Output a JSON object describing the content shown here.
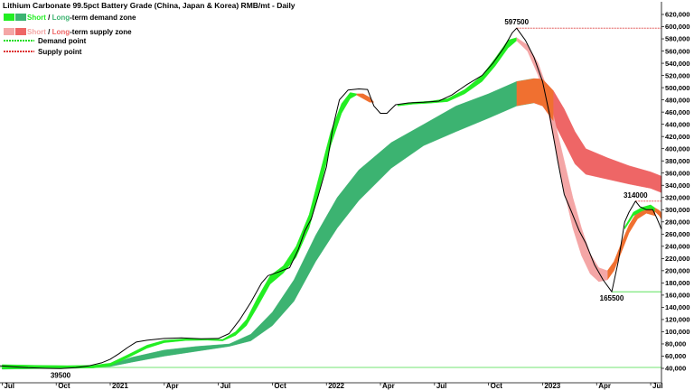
{
  "chart_data": {
    "type": "line",
    "title": "Lithium Carbonate 99.5pct Battery Grade (China, Japan & Korea) RMB/mt - Daily",
    "legend": [
      {
        "prefix": "Short",
        "sep": " / ",
        "accent": "Long",
        "suffix": "-term demand zone",
        "color_short": "#22ee22",
        "color_long": "#3cb371"
      },
      {
        "prefix": "Short",
        "sep": " / ",
        "accent": "Long",
        "suffix": "-term supply zone",
        "color_short": "#f4a6a6",
        "color_long": "#ee6666"
      },
      {
        "label": "Demand point",
        "color": "#22dd22",
        "dotted": true
      },
      {
        "label": "Supply point",
        "color": "#dd3333",
        "dotted": true
      }
    ],
    "legend_position": "top-left",
    "y_axis": {
      "position": "right",
      "min": 40000,
      "max": 620000,
      "step": 20000
    },
    "y_ticks": [
      "40,000",
      "60,000",
      "80,000",
      "100,000",
      "120,000",
      "140,000",
      "160,000",
      "180,000",
      "200,000",
      "220,000",
      "240,000",
      "260,000",
      "280,000",
      "300,000",
      "320,000",
      "340,000",
      "360,000",
      "380,000",
      "400,000",
      "420,000",
      "440,000",
      "460,000",
      "480,000",
      "500,000",
      "520,000",
      "540,000",
      "560,000",
      "580,000",
      "600,000",
      "620,000"
    ],
    "x_ticks": [
      {
        "label": "Jul",
        "t": 2020.5
      },
      {
        "label": "Oct",
        "t": 2020.75
      },
      {
        "label": "2021",
        "t": 2021.0
      },
      {
        "label": "Apr",
        "t": 2021.25
      },
      {
        "label": "Jul",
        "t": 2021.5
      },
      {
        "label": "Oct",
        "t": 2021.75
      },
      {
        "label": "2022",
        "t": 2022.0
      },
      {
        "label": "Apr",
        "t": 2022.25
      },
      {
        "label": "Jul",
        "t": 2022.5
      },
      {
        "label": "Oct",
        "t": 2022.75
      },
      {
        "label": "2023",
        "t": 2023.0
      },
      {
        "label": "Apr",
        "t": 2023.25
      },
      {
        "label": "Jul",
        "t": 2023.5
      }
    ],
    "x_range": [
      2020.49,
      2023.55
    ],
    "annotations": [
      {
        "text": "597500",
        "t": 2022.88,
        "y": 597500,
        "where": "above"
      },
      {
        "text": "39500",
        "t": 2020.77,
        "y": 39500,
        "where": "below"
      },
      {
        "text": "165500",
        "t": 2023.32,
        "y": 165500,
        "where": "below"
      },
      {
        "text": "314000",
        "t": 2023.43,
        "y": 314000,
        "where": "above"
      }
    ],
    "reference_lines": [
      {
        "kind": "supply",
        "y": 597500,
        "t_from": 2022.88,
        "t_to": 2023.55
      },
      {
        "kind": "supply",
        "y": 314000,
        "t_from": 2023.43,
        "t_to": 2023.55
      },
      {
        "kind": "demand",
        "y": 165500,
        "t_from": 2023.32,
        "t_to": 2023.55
      },
      {
        "kind": "demand",
        "y": 41500,
        "t_from": 2020.49,
        "t_to": 2023.55
      }
    ],
    "series": [
      {
        "key": "price",
        "color": "#000000",
        "points": [
          [
            2020.49,
            44000
          ],
          [
            2020.55,
            42500
          ],
          [
            2020.62,
            41000
          ],
          [
            2020.7,
            40000
          ],
          [
            2020.77,
            39500
          ],
          [
            2020.84,
            41000
          ],
          [
            2020.9,
            44000
          ],
          [
            2020.96,
            49000
          ],
          [
            2021.0,
            55000
          ],
          [
            2021.04,
            64000
          ],
          [
            2021.08,
            74000
          ],
          [
            2021.12,
            83000
          ],
          [
            2021.17,
            86000
          ],
          [
            2021.25,
            89000
          ],
          [
            2021.33,
            90000
          ],
          [
            2021.42,
            88500
          ],
          [
            2021.5,
            89000
          ],
          [
            2021.55,
            97000
          ],
          [
            2021.6,
            120000
          ],
          [
            2021.65,
            148000
          ],
          [
            2021.7,
            180000
          ],
          [
            2021.73,
            192000
          ],
          [
            2021.78,
            198000
          ],
          [
            2021.83,
            205000
          ],
          [
            2021.87,
            235000
          ],
          [
            2021.9,
            265000
          ],
          [
            2021.93,
            285000
          ],
          [
            2021.96,
            320000
          ],
          [
            2022.0,
            370000
          ],
          [
            2022.03,
            435000
          ],
          [
            2022.06,
            480000
          ],
          [
            2022.1,
            496000
          ],
          [
            2022.15,
            498000
          ],
          [
            2022.19,
            497000
          ],
          [
            2022.22,
            470000
          ],
          [
            2022.25,
            458000
          ],
          [
            2022.28,
            458000
          ],
          [
            2022.32,
            472000
          ],
          [
            2022.38,
            475000
          ],
          [
            2022.45,
            476000
          ],
          [
            2022.52,
            478000
          ],
          [
            2022.58,
            488000
          ],
          [
            2022.65,
            505000
          ],
          [
            2022.72,
            520000
          ],
          [
            2022.77,
            540000
          ],
          [
            2022.82,
            565000
          ],
          [
            2022.86,
            590000
          ],
          [
            2022.88,
            597500
          ],
          [
            2022.92,
            578000
          ],
          [
            2022.96,
            550000
          ],
          [
            2023.0,
            510000
          ],
          [
            2023.03,
            460000
          ],
          [
            2023.07,
            380000
          ],
          [
            2023.1,
            325000
          ],
          [
            2023.13,
            300000
          ],
          [
            2023.17,
            265000
          ],
          [
            2023.2,
            245000
          ],
          [
            2023.24,
            210000
          ],
          [
            2023.28,
            185000
          ],
          [
            2023.32,
            165500
          ],
          [
            2023.35,
            215000
          ],
          [
            2023.38,
            280000
          ],
          [
            2023.4,
            296000
          ],
          [
            2023.43,
            314000
          ],
          [
            2023.45,
            305000
          ],
          [
            2023.48,
            300000
          ],
          [
            2023.51,
            300000
          ],
          [
            2023.53,
            285000
          ],
          [
            2023.55,
            268000
          ]
        ]
      },
      {
        "key": "short_term_zone",
        "points": [
          [
            2020.5,
            39000,
            46000
          ],
          [
            2020.65,
            39500,
            45000
          ],
          [
            2020.8,
            40000,
            44500
          ],
          [
            2020.92,
            40500,
            45000
          ],
          [
            2021.0,
            44000,
            48500
          ],
          [
            2021.08,
            57000,
            62000
          ],
          [
            2021.17,
            73000,
            78000
          ],
          [
            2021.25,
            82000,
            86000
          ],
          [
            2021.35,
            85500,
            88500
          ],
          [
            2021.45,
            86000,
            88500
          ],
          [
            2021.52,
            85000,
            87500
          ],
          [
            2021.58,
            94000,
            100000
          ],
          [
            2021.63,
            110000,
            120000
          ],
          [
            2021.68,
            140000,
            155000
          ],
          [
            2021.74,
            178000,
            192000
          ],
          [
            2021.8,
            196000,
            208000
          ],
          [
            2021.86,
            222000,
            240000
          ],
          [
            2021.92,
            270000,
            292000
          ],
          [
            2021.97,
            335000,
            360000
          ],
          [
            2022.02,
            405000,
            428000
          ],
          [
            2022.07,
            458000,
            474000
          ],
          [
            2022.11,
            482000,
            492000
          ],
          [
            2022.14,
            488000,
            490000
          ]
        ]
      },
      {
        "key": "short_term_zone_late",
        "points": [
          [
            2022.33,
            470000,
            472000
          ],
          [
            2022.4,
            473000,
            476000
          ],
          [
            2022.48,
            474500,
            478000
          ],
          [
            2022.56,
            477000,
            482000
          ],
          [
            2022.64,
            490000,
            497000
          ],
          [
            2022.72,
            510000,
            520000
          ],
          [
            2022.78,
            535000,
            548000
          ],
          [
            2022.84,
            565000,
            578000
          ],
          [
            2022.88,
            577000,
            582000
          ]
        ]
      },
      {
        "key": "short_term_zone_recovery",
        "points": [
          [
            2023.38,
            268000,
            272000
          ],
          [
            2023.42,
            290000,
            296000
          ],
          [
            2023.46,
            298000,
            304000
          ],
          [
            2023.5,
            302000,
            308000
          ],
          [
            2023.52,
            297000,
            303000
          ]
        ]
      },
      {
        "key": "long_term_zone",
        "points": [
          [
            2020.5,
            38500,
            41000
          ],
          [
            2020.8,
            40500,
            42500
          ],
          [
            2021.0,
            43000,
            46000
          ],
          [
            2021.1,
            50000,
            58000
          ],
          [
            2021.25,
            60000,
            70000
          ],
          [
            2021.4,
            68000,
            76000
          ],
          [
            2021.55,
            76000,
            80000
          ],
          [
            2021.65,
            85000,
            96000
          ],
          [
            2021.75,
            110000,
            132000
          ],
          [
            2021.85,
            150000,
            185000
          ],
          [
            2021.95,
            215000,
            258000
          ],
          [
            2022.05,
            270000,
            320000
          ],
          [
            2022.15,
            315000,
            365000
          ],
          [
            2022.3,
            368000,
            410000
          ],
          [
            2022.45,
            405000,
            440000
          ],
          [
            2022.6,
            428000,
            470000
          ],
          [
            2022.75,
            450000,
            490000
          ],
          [
            2022.88,
            470000,
            510000
          ],
          [
            2022.96,
            475000,
            515000
          ]
        ]
      },
      {
        "key": "short_supply_early",
        "points": [
          [
            2022.14,
            488000,
            490000
          ],
          [
            2022.17,
            482000,
            490000
          ],
          [
            2022.2,
            476000,
            484000
          ],
          [
            2022.22,
            476000,
            476000
          ]
        ]
      },
      {
        "key": "short_supply_main",
        "points": [
          [
            2022.88,
            577000,
            582000
          ],
          [
            2022.93,
            560000,
            570000
          ],
          [
            2022.98,
            520000,
            540000
          ],
          [
            2023.02,
            470000,
            500000
          ],
          [
            2023.06,
            400000,
            440000
          ],
          [
            2023.1,
            330000,
            380000
          ],
          [
            2023.14,
            270000,
            320000
          ],
          [
            2023.18,
            225000,
            270000
          ],
          [
            2023.22,
            195000,
            228000
          ],
          [
            2023.26,
            182000,
            205000
          ],
          [
            2023.3,
            185000,
            200000
          ]
        ]
      },
      {
        "key": "short_supply_recovery_edge",
        "points": [
          [
            2023.52,
            297000,
            303000
          ],
          [
            2023.54,
            290000,
            299000
          ],
          [
            2023.55,
            284000,
            295000
          ]
        ]
      },
      {
        "key": "long_supply_zone",
        "points": [
          [
            2022.96,
            475000,
            515000
          ],
          [
            2023.0,
            470000,
            514000
          ],
          [
            2023.05,
            445000,
            495000
          ],
          [
            2023.1,
            410000,
            465000
          ],
          [
            2023.15,
            375000,
            428000
          ],
          [
            2023.2,
            358000,
            400000
          ],
          [
            2023.3,
            350000,
            385000
          ],
          [
            2023.4,
            342000,
            372000
          ],
          [
            2023.5,
            335000,
            362000
          ],
          [
            2023.55,
            328000,
            355000
          ]
        ]
      },
      {
        "key": "long_demand_recovery",
        "points": [
          [
            2023.3,
            185000,
            200000
          ],
          [
            2023.33,
            200000,
            215000
          ],
          [
            2023.37,
            235000,
            250000
          ],
          [
            2023.4,
            262000,
            275000
          ],
          [
            2023.44,
            285000,
            298000
          ],
          [
            2023.48,
            294000,
            305000
          ],
          [
            2023.52,
            290000,
            300000
          ]
        ]
      }
    ]
  }
}
